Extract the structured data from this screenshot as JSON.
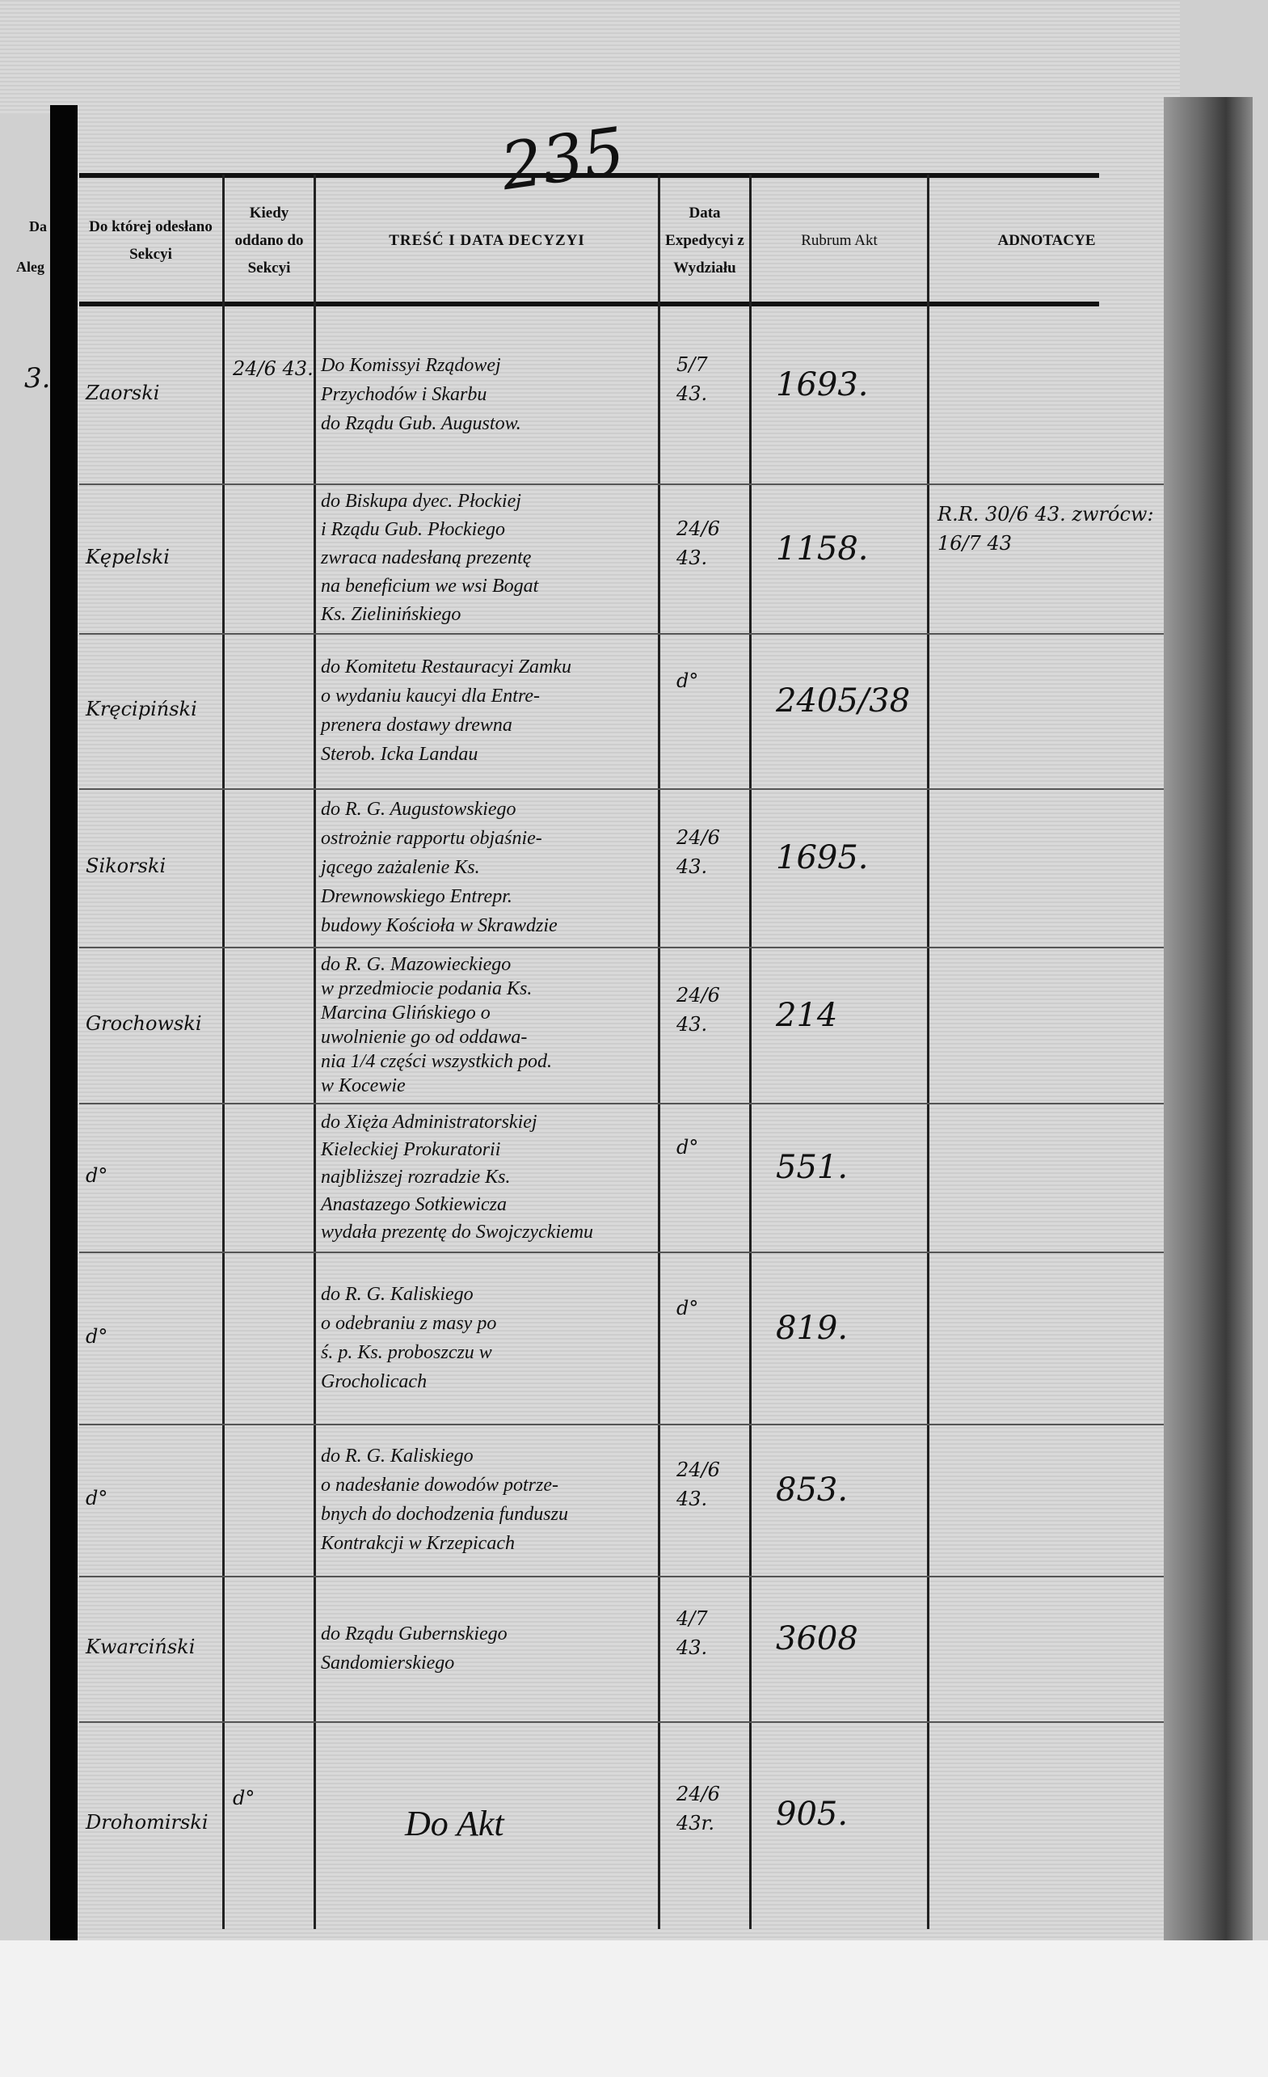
{
  "page_number": "235",
  "left_page_fragments": [
    "Da",
    "Aleg",
    "3."
  ],
  "headers": {
    "sekcja": "Do której odesłano Sekcyi",
    "kiedy": "Kiedy oddano do Sekcyi",
    "tresc": "TREŚĆ I DATA DECYZYI",
    "data_exp": "Data Expedycyi z Wydziału",
    "rubrum": "Rubrum Akt",
    "adnotacye": "ADNOTACYE"
  },
  "rows": [
    {
      "sekcja": "Zaorski",
      "kiedy": "24/6 43.",
      "tresc": [
        "Do Komissyi Rządowej",
        "Przychodów i Skarbu",
        "do Rządu Gub. Augustow."
      ],
      "data_exp": "5/7 43.",
      "rubrum": "1693.",
      "adnotacye": ""
    },
    {
      "sekcja": "Kępelski",
      "kiedy": "",
      "tresc": [
        "do Biskupa dyec. Płockiej",
        "i Rządu Gub. Płockiego",
        "zwraca nadesłaną prezentę",
        "na beneficium we wsi Bogat",
        "Ks. Zielinińskiego"
      ],
      "data_exp": "24/6 43.",
      "rubrum": "1158.",
      "adnotacye": "R.R. 30/6 43. zwrócw: 16/7 43"
    },
    {
      "sekcja": "Kręcipiński",
      "kiedy": "",
      "tresc": [
        "do Komitetu Restauracyi Zamku",
        "o wydaniu kaucyi dla Entre-",
        "prenera dostawy drewna",
        "Sterob. Icka Landau"
      ],
      "data_exp": "d°",
      "rubrum": "2405/38",
      "adnotacye": ""
    },
    {
      "sekcja": "Sikorski",
      "kiedy": "",
      "tresc": [
        "do R. G. Augustowskiego",
        "ostrożnie rapportu objaśnie-",
        "jącego zażalenie Ks.",
        "Drewnowskiego Entrepr.",
        "budowy Kościoła w Skrawdzie"
      ],
      "data_exp": "24/6 43.",
      "rubrum": "1695.",
      "adnotacye": ""
    },
    {
      "sekcja": "Grochowski",
      "kiedy": "",
      "tresc": [
        "do R. G. Mazowieckiego",
        "w przedmiocie podania Ks.",
        "Marcina Glińskiego o",
        "uwolnienie go od oddawa-",
        "nia 1/4 części wszystkich pod.",
        "w Kocewie"
      ],
      "data_exp": "24/6 43.",
      "rubrum": "214",
      "adnotacye": ""
    },
    {
      "sekcja": "d°",
      "kiedy": "",
      "tresc": [
        "do Xięża Administratorskiej",
        "Kieleckiej Prokuratorii",
        "najbliższej rozradzie Ks.",
        "Anastazego Sotkiewicza",
        "wydała prezentę do Swojczyckiemu"
      ],
      "data_exp": "d°",
      "rubrum": "551.",
      "adnotacye": ""
    },
    {
      "sekcja": "d°",
      "kiedy": "",
      "tresc": [
        "do R. G. Kaliskiego",
        "o odebraniu z masy po",
        "ś. p. Ks. proboszczu w",
        "Grocholicach"
      ],
      "data_exp": "d°",
      "rubrum": "819.",
      "adnotacye": ""
    },
    {
      "sekcja": "d°",
      "kiedy": "",
      "tresc": [
        "do R. G. Kaliskiego",
        "o nadesłanie dowodów potrze-",
        "bnych do dochodzenia funduszu",
        "Kontrakcji w Krzepicach"
      ],
      "data_exp": "24/6 43.",
      "rubrum": "853.",
      "adnotacye": ""
    },
    {
      "sekcja": "Kwarciński",
      "kiedy": "",
      "tresc": [
        "do Rządu Gubernskiego",
        "Sandomierskiego"
      ],
      "data_exp": "4/7 43.",
      "rubrum": "3608",
      "adnotacye": ""
    },
    {
      "sekcja": "Drohomirski",
      "kiedy": "d°",
      "tresc": [
        "Do Akt"
      ],
      "data_exp": "24/6 43r.",
      "rubrum": "905.",
      "adnotacye": ""
    }
  ]
}
